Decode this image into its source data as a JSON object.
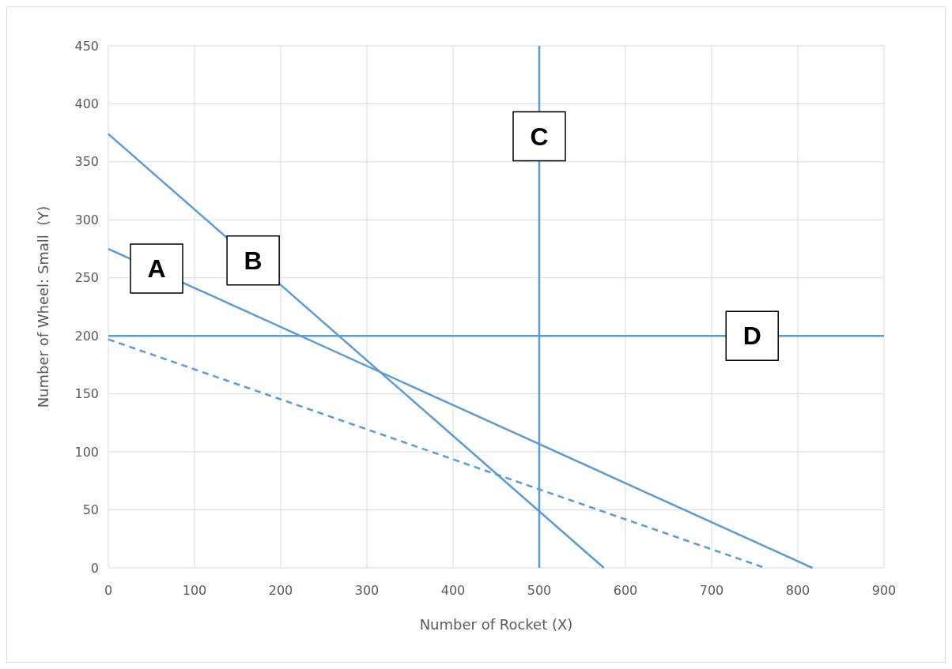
{
  "chart_data": {
    "type": "line",
    "xlabel": "Number of Rocket (X)",
    "ylabel": "Number of Wheel: Small  (Y)",
    "xlim": [
      0,
      900
    ],
    "xticks": [
      0,
      100,
      200,
      300,
      400,
      500,
      600,
      700,
      800,
      900
    ],
    "ylim": [
      0,
      450
    ],
    "yticks": [
      0,
      50,
      100,
      150,
      200,
      250,
      300,
      350,
      400,
      450
    ],
    "grid": true,
    "marker": "none",
    "series": [
      {
        "color": "#5b9bd5",
        "x": [
          0,
          817
        ],
        "values": [
          275,
          0
        ],
        "line_style": "solid"
      },
      {
        "color": "#5b9bd5",
        "x": [
          0,
          575
        ],
        "values": [
          374,
          0
        ],
        "line_style": "solid"
      },
      {
        "color": "#5b9bd5",
        "x": [
          500,
          500
        ],
        "values": [
          0,
          450
        ],
        "line_style": "solid"
      },
      {
        "color": "#5b9bd5",
        "x": [
          0,
          900
        ],
        "values": [
          200,
          200
        ],
        "line_style": "solid"
      },
      {
        "color": "#5b9bd5",
        "x": [
          0,
          762
        ],
        "values": [
          197,
          0
        ],
        "line_style": "dashed"
      }
    ],
    "annotations": [
      {
        "text": "A",
        "x": 56,
        "y": 258
      },
      {
        "text": "B",
        "x": 168,
        "y": 265
      },
      {
        "text": "C",
        "x": 500,
        "y": 372
      },
      {
        "text": "D",
        "x": 747,
        "y": 200
      }
    ]
  }
}
